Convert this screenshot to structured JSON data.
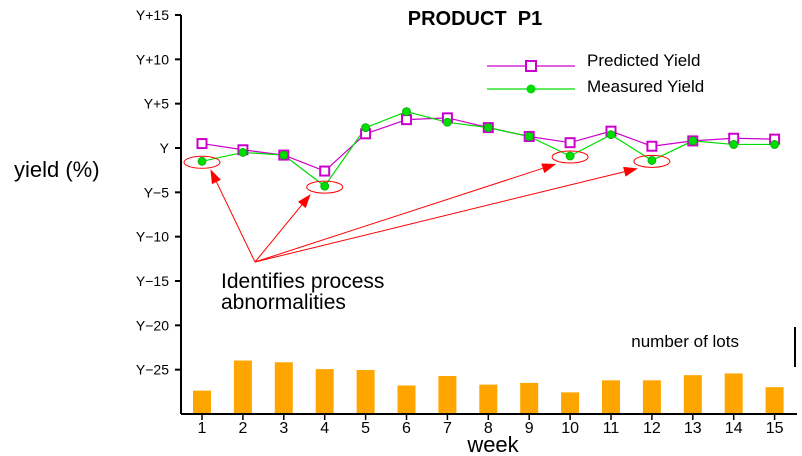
{
  "chart_data": {
    "type": "line",
    "title": "PRODUCT  P1",
    "xlabel": "week",
    "ylabel": "yield (%)",
    "x": [
      1,
      2,
      3,
      4,
      5,
      6,
      7,
      8,
      9,
      10,
      11,
      12,
      13,
      14,
      15
    ],
    "y_tick_labels": [
      "Y+15",
      "Y+10",
      "Y+5",
      "Y",
      "Y−5",
      "Y−10",
      "Y−15",
      "Y−20",
      "Y−25"
    ],
    "y_tick_values": [
      15,
      10,
      5,
      0,
      -5,
      -10,
      -15,
      -20,
      -25
    ],
    "ylim": [
      -30,
      15
    ],
    "grid": false,
    "legend_position": "top-right",
    "series": [
      {
        "name": "Predicted Yield",
        "color": "#cc00cc",
        "marker": "square",
        "values": [
          0.5,
          -0.2,
          -0.8,
          -2.6,
          1.6,
          3.2,
          3.4,
          2.3,
          1.3,
          0.6,
          1.9,
          0.2,
          0.8,
          1.1,
          1.0
        ]
      },
      {
        "name": "Measured Yield",
        "color": "#00dd00",
        "marker": "circle",
        "values": [
          -1.5,
          -0.5,
          -0.8,
          -4.3,
          2.3,
          4.1,
          2.9,
          2.3,
          1.3,
          -0.9,
          1.5,
          -1.4,
          0.8,
          0.4,
          0.4
        ]
      }
    ],
    "lots": {
      "label": "number of lots",
      "color": "#ffa500",
      "values": [
        26,
        61,
        59,
        51,
        50,
        32,
        43,
        33,
        35,
        24,
        38,
        38,
        44,
        46,
        30
      ],
      "ylim": [
        0,
        100
      ]
    },
    "annotation": {
      "text_lines": [
        "Identifies process",
        "abnormalities"
      ],
      "circled_weeks": [
        1,
        4,
        10,
        12
      ],
      "arrow_color": "#ff0000"
    }
  }
}
